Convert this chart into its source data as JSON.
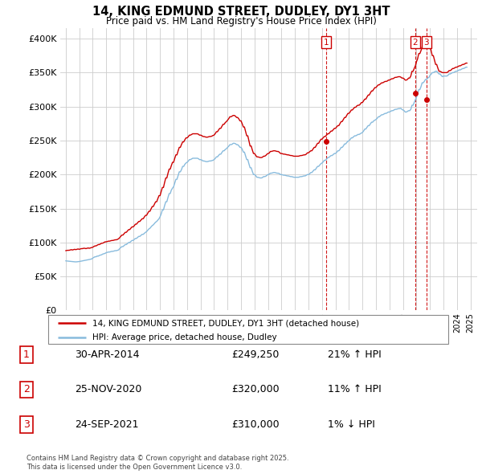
{
  "title": "14, KING EDMUND STREET, DUDLEY, DY1 3HT",
  "subtitle": "Price paid vs. HM Land Registry's House Price Index (HPI)",
  "ytick_values": [
    0,
    50000,
    100000,
    150000,
    200000,
    250000,
    300000,
    350000,
    400000
  ],
  "ylim": [
    0,
    415000
  ],
  "xlim": [
    1994.6,
    2025.5
  ],
  "red_color": "#cc0000",
  "blue_color": "#88bbdd",
  "bg_color": "#ffffff",
  "grid_color": "#cccccc",
  "transactions": [
    {
      "num": 1,
      "date": "30-APR-2014",
      "price": 249250,
      "year": 2014.33,
      "hpi_pct": "21%",
      "hpi_dir": "↑"
    },
    {
      "num": 2,
      "date": "25-NOV-2020",
      "price": 320000,
      "year": 2020.9,
      "hpi_pct": "11%",
      "hpi_dir": "↑"
    },
    {
      "num": 3,
      "date": "24-SEP-2021",
      "price": 310000,
      "year": 2021.73,
      "hpi_pct": "1%",
      "hpi_dir": "↓"
    }
  ],
  "legend_red_label": "14, KING EDMUND STREET, DUDLEY, DY1 3HT (detached house)",
  "legend_blue_label": "HPI: Average price, detached house, Dudley",
  "footer_line1": "Contains HM Land Registry data © Crown copyright and database right 2025.",
  "footer_line2": "This data is licensed under the Open Government Licence v3.0.",
  "hpi_years": [
    1995.0,
    1995.08,
    1995.17,
    1995.25,
    1995.33,
    1995.42,
    1995.5,
    1995.58,
    1995.67,
    1995.75,
    1995.83,
    1995.92,
    1996.0,
    1996.08,
    1996.17,
    1996.25,
    1996.33,
    1996.42,
    1996.5,
    1996.58,
    1996.67,
    1996.75,
    1996.83,
    1996.92,
    1997.0,
    1997.08,
    1997.17,
    1997.25,
    1997.33,
    1997.42,
    1997.5,
    1997.58,
    1997.67,
    1997.75,
    1997.83,
    1997.92,
    1998.0,
    1998.08,
    1998.17,
    1998.25,
    1998.33,
    1998.42,
    1998.5,
    1998.58,
    1998.67,
    1998.75,
    1998.83,
    1998.92,
    1999.0,
    1999.08,
    1999.17,
    1999.25,
    1999.33,
    1999.42,
    1999.5,
    1999.58,
    1999.67,
    1999.75,
    1999.83,
    1999.92,
    2000.0,
    2000.08,
    2000.17,
    2000.25,
    2000.33,
    2000.42,
    2000.5,
    2000.58,
    2000.67,
    2000.75,
    2000.83,
    2000.92,
    2001.0,
    2001.08,
    2001.17,
    2001.25,
    2001.33,
    2001.42,
    2001.5,
    2001.58,
    2001.67,
    2001.75,
    2001.83,
    2001.92,
    2002.0,
    2002.08,
    2002.17,
    2002.25,
    2002.33,
    2002.42,
    2002.5,
    2002.58,
    2002.67,
    2002.75,
    2002.83,
    2002.92,
    2003.0,
    2003.08,
    2003.17,
    2003.25,
    2003.33,
    2003.42,
    2003.5,
    2003.58,
    2003.67,
    2003.75,
    2003.83,
    2003.92,
    2004.0,
    2004.08,
    2004.17,
    2004.25,
    2004.33,
    2004.42,
    2004.5,
    2004.58,
    2004.67,
    2004.75,
    2004.83,
    2004.92,
    2005.0,
    2005.08,
    2005.17,
    2005.25,
    2005.33,
    2005.42,
    2005.5,
    2005.58,
    2005.67,
    2005.75,
    2005.83,
    2005.92,
    2006.0,
    2006.08,
    2006.17,
    2006.25,
    2006.33,
    2006.42,
    2006.5,
    2006.58,
    2006.67,
    2006.75,
    2006.83,
    2006.92,
    2007.0,
    2007.08,
    2007.17,
    2007.25,
    2007.33,
    2007.42,
    2007.5,
    2007.58,
    2007.67,
    2007.75,
    2007.83,
    2007.92,
    2008.0,
    2008.08,
    2008.17,
    2008.25,
    2008.33,
    2008.42,
    2008.5,
    2008.58,
    2008.67,
    2008.75,
    2008.83,
    2008.92,
    2009.0,
    2009.08,
    2009.17,
    2009.25,
    2009.33,
    2009.42,
    2009.5,
    2009.58,
    2009.67,
    2009.75,
    2009.83,
    2009.92,
    2010.0,
    2010.08,
    2010.17,
    2010.25,
    2010.33,
    2010.42,
    2010.5,
    2010.58,
    2010.67,
    2010.75,
    2010.83,
    2010.92,
    2011.0,
    2011.08,
    2011.17,
    2011.25,
    2011.33,
    2011.42,
    2011.5,
    2011.58,
    2011.67,
    2011.75,
    2011.83,
    2011.92,
    2012.0,
    2012.08,
    2012.17,
    2012.25,
    2012.33,
    2012.42,
    2012.5,
    2012.58,
    2012.67,
    2012.75,
    2012.83,
    2012.92,
    2013.0,
    2013.08,
    2013.17,
    2013.25,
    2013.33,
    2013.42,
    2013.5,
    2013.58,
    2013.67,
    2013.75,
    2013.83,
    2013.92,
    2014.0,
    2014.08,
    2014.17,
    2014.25,
    2014.33,
    2014.42,
    2014.5,
    2014.58,
    2014.67,
    2014.75,
    2014.83,
    2014.92,
    2015.0,
    2015.08,
    2015.17,
    2015.25,
    2015.33,
    2015.42,
    2015.5,
    2015.58,
    2015.67,
    2015.75,
    2015.83,
    2015.92,
    2016.0,
    2016.08,
    2016.17,
    2016.25,
    2016.33,
    2016.42,
    2016.5,
    2016.58,
    2016.67,
    2016.75,
    2016.83,
    2016.92,
    2017.0,
    2017.08,
    2017.17,
    2017.25,
    2017.33,
    2017.42,
    2017.5,
    2017.58,
    2017.67,
    2017.75,
    2017.83,
    2017.92,
    2018.0,
    2018.08,
    2018.17,
    2018.25,
    2018.33,
    2018.42,
    2018.5,
    2018.58,
    2018.67,
    2018.75,
    2018.83,
    2018.92,
    2019.0,
    2019.08,
    2019.17,
    2019.25,
    2019.33,
    2019.42,
    2019.5,
    2019.58,
    2019.67,
    2019.75,
    2019.83,
    2019.92,
    2020.0,
    2020.08,
    2020.17,
    2020.25,
    2020.33,
    2020.42,
    2020.5,
    2020.58,
    2020.67,
    2020.75,
    2020.83,
    2020.92,
    2021.0,
    2021.08,
    2021.17,
    2021.25,
    2021.33,
    2021.42,
    2021.5,
    2021.58,
    2021.67,
    2021.75,
    2021.83,
    2021.92,
    2022.0,
    2022.08,
    2022.17,
    2022.25,
    2022.33,
    2022.42,
    2022.5,
    2022.58,
    2022.67,
    2022.75,
    2022.83,
    2022.92,
    2023.0,
    2023.08,
    2023.17,
    2023.25,
    2023.33,
    2023.42,
    2023.5,
    2023.58,
    2023.67,
    2023.75,
    2023.83,
    2023.92,
    2024.0,
    2024.08,
    2024.17,
    2024.25,
    2024.33,
    2024.42,
    2024.5,
    2024.58,
    2024.67,
    2024.75
  ],
  "hpi_values": [
    73000,
    72800,
    72600,
    72500,
    72300,
    72100,
    72000,
    71800,
    71600,
    71500,
    71600,
    71800,
    72000,
    72300,
    72700,
    73000,
    73400,
    73700,
    74000,
    74400,
    74700,
    75000,
    75400,
    75700,
    77000,
    78000,
    79000,
    79000,
    80000,
    80000,
    81000,
    81500,
    82000,
    83000,
    83500,
    84000,
    85000,
    85500,
    86000,
    86000,
    86500,
    87000,
    87000,
    87500,
    88000,
    88000,
    88500,
    89000,
    91000,
    92500,
    94000,
    94000,
    95500,
    97000,
    97000,
    98500,
    100000,
    100000,
    101500,
    103000,
    103000,
    104500,
    106000,
    106000,
    107500,
    109000,
    109000,
    110500,
    112000,
    112000,
    113500,
    115000,
    116000,
    118000,
    120000,
    121000,
    123000,
    125000,
    126000,
    128000,
    130000,
    131000,
    133000,
    135000,
    138000,
    142000,
    148000,
    148000,
    154000,
    160000,
    160000,
    166000,
    172000,
    172000,
    177000,
    180000,
    182000,
    187000,
    193000,
    193000,
    198000,
    204000,
    204000,
    207000,
    212000,
    212000,
    215000,
    217000,
    218000,
    219500,
    222000,
    222000,
    223000,
    224000,
    224000,
    224000,
    224000,
    224000,
    223500,
    222000,
    222000,
    221500,
    220000,
    220000,
    219500,
    219000,
    219000,
    219500,
    220000,
    220000,
    220500,
    221000,
    222000,
    223500,
    226000,
    226000,
    228000,
    230000,
    230000,
    232500,
    235000,
    235000,
    237000,
    238000,
    240000,
    241500,
    244000,
    244000,
    244500,
    246000,
    246000,
    245500,
    244000,
    244000,
    242500,
    240000,
    240000,
    237500,
    233000,
    233000,
    228000,
    222000,
    222000,
    216000,
    210000,
    210000,
    205000,
    200000,
    200000,
    198500,
    196000,
    196000,
    195500,
    195000,
    195000,
    195500,
    197000,
    197000,
    197500,
    199000,
    200000,
    200500,
    202000,
    202000,
    202500,
    203000,
    203000,
    202500,
    202000,
    202000,
    201500,
    200000,
    200000,
    199500,
    199000,
    199000,
    198500,
    198000,
    198000,
    197500,
    197000,
    197000,
    196500,
    196000,
    196000,
    196000,
    196000,
    196000,
    196500,
    197000,
    197000,
    197500,
    198000,
    198000,
    199000,
    200000,
    200000,
    201000,
    203000,
    203000,
    205000,
    207000,
    207000,
    209500,
    212000,
    212000,
    214000,
    216000,
    217000,
    218500,
    221000,
    221000,
    222500,
    225000,
    225000,
    226500,
    228000,
    228000,
    229500,
    231000,
    231000,
    232500,
    235000,
    235000,
    237000,
    240000,
    240000,
    242000,
    245000,
    245000,
    247000,
    249000,
    250000,
    251500,
    254000,
    254000,
    255500,
    257000,
    257000,
    258000,
    259000,
    259000,
    260000,
    261000,
    262000,
    264000,
    267000,
    267000,
    269500,
    272000,
    272000,
    274500,
    277000,
    277000,
    279000,
    280000,
    281000,
    282500,
    285000,
    285000,
    286500,
    288000,
    288000,
    289000,
    290000,
    290000,
    291000,
    292000,
    292000,
    293000,
    294000,
    294000,
    295000,
    296000,
    296000,
    296500,
    297000,
    297000,
    297500,
    296000,
    295000,
    294000,
    292000,
    292000,
    293000,
    294000,
    294000,
    296000,
    302000,
    302000,
    306000,
    310000,
    314000,
    318000,
    325000,
    325000,
    329000,
    335000,
    335000,
    337000,
    340000,
    340000,
    342000,
    343000,
    346000,
    347500,
    350000,
    350000,
    351000,
    352000,
    352000,
    350000,
    348000,
    348000,
    346000,
    344000,
    345000,
    345000,
    345000,
    345000,
    346000,
    348000,
    348000,
    349000,
    350000,
    350000,
    351000,
    352000,
    352000,
    353000,
    354000,
    354000,
    355000,
    356000,
    356000,
    357000,
    358000,
    358000
  ],
  "price_years": [
    1995.0,
    1995.08,
    1995.17,
    1995.25,
    1995.33,
    1995.42,
    1995.5,
    1995.58,
    1995.67,
    1995.75,
    1995.83,
    1995.92,
    1996.0,
    1996.08,
    1996.17,
    1996.25,
    1996.33,
    1996.42,
    1996.5,
    1996.58,
    1996.67,
    1996.75,
    1996.83,
    1996.92,
    1997.0,
    1997.08,
    1997.17,
    1997.25,
    1997.33,
    1997.42,
    1997.5,
    1997.58,
    1997.67,
    1997.75,
    1997.83,
    1997.92,
    1998.0,
    1998.08,
    1998.17,
    1998.25,
    1998.33,
    1998.42,
    1998.5,
    1998.58,
    1998.67,
    1998.75,
    1998.83,
    1998.92,
    1999.0,
    1999.08,
    1999.17,
    1999.25,
    1999.33,
    1999.42,
    1999.5,
    1999.58,
    1999.67,
    1999.75,
    1999.83,
    1999.92,
    2000.0,
    2000.08,
    2000.17,
    2000.25,
    2000.33,
    2000.42,
    2000.5,
    2000.58,
    2000.67,
    2000.75,
    2000.83,
    2000.92,
    2001.0,
    2001.08,
    2001.17,
    2001.25,
    2001.33,
    2001.42,
    2001.5,
    2001.58,
    2001.67,
    2001.75,
    2001.83,
    2001.92,
    2002.0,
    2002.08,
    2002.17,
    2002.25,
    2002.33,
    2002.42,
    2002.5,
    2002.58,
    2002.67,
    2002.75,
    2002.83,
    2002.92,
    2003.0,
    2003.08,
    2003.17,
    2003.25,
    2003.33,
    2003.42,
    2003.5,
    2003.58,
    2003.67,
    2003.75,
    2003.83,
    2003.92,
    2004.0,
    2004.08,
    2004.17,
    2004.25,
    2004.33,
    2004.42,
    2004.5,
    2004.58,
    2004.67,
    2004.75,
    2004.83,
    2004.92,
    2005.0,
    2005.08,
    2005.17,
    2005.25,
    2005.33,
    2005.42,
    2005.5,
    2005.58,
    2005.67,
    2005.75,
    2005.83,
    2005.92,
    2006.0,
    2006.08,
    2006.17,
    2006.25,
    2006.33,
    2006.42,
    2006.5,
    2006.58,
    2006.67,
    2006.75,
    2006.83,
    2006.92,
    2007.0,
    2007.08,
    2007.17,
    2007.25,
    2007.33,
    2007.42,
    2007.5,
    2007.58,
    2007.67,
    2007.75,
    2007.83,
    2007.92,
    2008.0,
    2008.08,
    2008.17,
    2008.25,
    2008.33,
    2008.42,
    2008.5,
    2008.58,
    2008.67,
    2008.75,
    2008.83,
    2008.92,
    2009.0,
    2009.08,
    2009.17,
    2009.25,
    2009.33,
    2009.42,
    2009.5,
    2009.58,
    2009.67,
    2009.75,
    2009.83,
    2009.92,
    2010.0,
    2010.08,
    2010.17,
    2010.25,
    2010.33,
    2010.42,
    2010.5,
    2010.58,
    2010.67,
    2010.75,
    2010.83,
    2010.92,
    2011.0,
    2011.08,
    2011.17,
    2011.25,
    2011.33,
    2011.42,
    2011.5,
    2011.58,
    2011.67,
    2011.75,
    2011.83,
    2011.92,
    2012.0,
    2012.08,
    2012.17,
    2012.25,
    2012.33,
    2012.42,
    2012.5,
    2012.58,
    2012.67,
    2012.75,
    2012.83,
    2012.92,
    2013.0,
    2013.08,
    2013.17,
    2013.25,
    2013.33,
    2013.42,
    2013.5,
    2013.58,
    2013.67,
    2013.75,
    2013.83,
    2013.92,
    2014.0,
    2014.08,
    2014.17,
    2014.25,
    2014.33,
    2014.42,
    2014.5,
    2014.58,
    2014.67,
    2014.75,
    2014.83,
    2014.92,
    2015.0,
    2015.08,
    2015.17,
    2015.25,
    2015.33,
    2015.42,
    2015.5,
    2015.58,
    2015.67,
    2015.75,
    2015.83,
    2015.92,
    2016.0,
    2016.08,
    2016.17,
    2016.25,
    2016.33,
    2016.42,
    2016.5,
    2016.58,
    2016.67,
    2016.75,
    2016.83,
    2016.92,
    2017.0,
    2017.08,
    2017.17,
    2017.25,
    2017.33,
    2017.42,
    2017.5,
    2017.58,
    2017.67,
    2017.75,
    2017.83,
    2017.92,
    2018.0,
    2018.08,
    2018.17,
    2018.25,
    2018.33,
    2018.42,
    2018.5,
    2018.58,
    2018.67,
    2018.75,
    2018.83,
    2018.92,
    2019.0,
    2019.08,
    2019.17,
    2019.25,
    2019.33,
    2019.42,
    2019.5,
    2019.58,
    2019.67,
    2019.75,
    2019.83,
    2019.92,
    2020.0,
    2020.08,
    2020.17,
    2020.25,
    2020.33,
    2020.42,
    2020.5,
    2020.58,
    2020.67,
    2020.75,
    2020.83,
    2020.92,
    2021.0,
    2021.08,
    2021.17,
    2021.25,
    2021.33,
    2021.42,
    2021.5,
    2021.58,
    2021.67,
    2021.75,
    2021.83,
    2021.92,
    2022.0,
    2022.08,
    2022.17,
    2022.25,
    2022.33,
    2022.42,
    2022.5,
    2022.58,
    2022.67,
    2022.75,
    2022.83,
    2022.92,
    2023.0,
    2023.08,
    2023.17,
    2023.25,
    2023.33,
    2023.42,
    2023.5,
    2023.58,
    2023.67,
    2023.75,
    2023.83,
    2023.92,
    2024.0,
    2024.08,
    2024.17,
    2024.25,
    2024.33,
    2024.42,
    2024.5,
    2024.58,
    2024.67,
    2024.75
  ],
  "price_values": [
    88000,
    88300,
    88600,
    88500,
    89000,
    89500,
    89000,
    89500,
    90000,
    89500,
    90000,
    90500,
    90000,
    90500,
    91000,
    91000,
    91500,
    91500,
    91000,
    91500,
    92000,
    91500,
    92000,
    92500,
    93000,
    94000,
    95000,
    95000,
    96000,
    97000,
    97000,
    98000,
    99000,
    99000,
    100000,
    101000,
    101000,
    101500,
    102000,
    102000,
    102500,
    103000,
    103000,
    103500,
    104000,
    104000,
    104500,
    105500,
    107000,
    109000,
    111000,
    111000,
    113000,
    115000,
    115000,
    117000,
    119000,
    119000,
    121000,
    123000,
    123000,
    124500,
    127000,
    127000,
    129000,
    131000,
    131000,
    133000,
    135000,
    135000,
    137500,
    140000,
    140000,
    143000,
    146000,
    146000,
    149500,
    153000,
    153000,
    156500,
    160000,
    160000,
    164500,
    169000,
    169000,
    175000,
    181000,
    181000,
    188000,
    195000,
    195000,
    201500,
    208000,
    208000,
    213000,
    218000,
    218000,
    223500,
    229000,
    229000,
    234500,
    240000,
    240000,
    244000,
    248000,
    248000,
    251000,
    254000,
    254000,
    255500,
    258000,
    258000,
    259000,
    260000,
    260000,
    260000,
    260000,
    260000,
    259500,
    258000,
    258000,
    257500,
    256000,
    256000,
    255500,
    255000,
    255000,
    255500,
    256000,
    256000,
    256500,
    257500,
    258000,
    260000,
    263000,
    263000,
    265500,
    268000,
    268000,
    271000,
    274000,
    274000,
    276500,
    278000,
    280000,
    282000,
    285000,
    285000,
    286000,
    287000,
    287000,
    286000,
    284000,
    284000,
    282000,
    279000,
    279000,
    275000,
    270000,
    270000,
    264000,
    257000,
    257000,
    250000,
    242000,
    242000,
    236500,
    231000,
    231000,
    228500,
    226000,
    226000,
    225500,
    225000,
    225000,
    225500,
    227000,
    227000,
    228000,
    230000,
    231000,
    231500,
    234000,
    234000,
    234500,
    235000,
    235000,
    234500,
    234000,
    234000,
    233000,
    231000,
    231000,
    230500,
    230000,
    230000,
    229500,
    229000,
    229000,
    228500,
    228000,
    228000,
    227500,
    227000,
    227000,
    227000,
    227000,
    227000,
    227500,
    228000,
    228000,
    228500,
    229000,
    229000,
    230000,
    232000,
    232000,
    233500,
    235000,
    235000,
    237500,
    240000,
    240000,
    243000,
    246000,
    246000,
    249000,
    252000,
    252000,
    254000,
    256000,
    256000,
    258000,
    260000,
    260000,
    262000,
    264000,
    264000,
    266000,
    268000,
    268000,
    270000,
    272000,
    272000,
    275000,
    278000,
    278000,
    281000,
    284000,
    284000,
    287000,
    290000,
    290000,
    292000,
    295000,
    295000,
    297000,
    299000,
    299000,
    301000,
    302000,
    302000,
    303500,
    306000,
    306000,
    308500,
    311000,
    311000,
    314000,
    317000,
    317000,
    320000,
    323000,
    323000,
    325500,
    328000,
    328000,
    330000,
    332000,
    332000,
    333500,
    335000,
    335000,
    336000,
    337000,
    337000,
    337500,
    339000,
    339000,
    340000,
    341000,
    341000,
    342000,
    343000,
    343000,
    343500,
    344000,
    344000,
    343500,
    342000,
    342000,
    341000,
    339000,
    339000,
    340000,
    342000,
    342000,
    345000,
    352000,
    352000,
    356000,
    360000,
    366000,
    370000,
    378000,
    378000,
    382000,
    388000,
    388000,
    390000,
    393000,
    393000,
    391000,
    388000,
    388000,
    383000,
    375000,
    375000,
    369000,
    362000,
    362000,
    357000,
    352000,
    352000,
    351000,
    350000,
    350000,
    350000,
    350000,
    350000,
    351000,
    353000,
    353000,
    354000,
    356000,
    356000,
    357000,
    358000,
    358000,
    359000,
    360000,
    360000,
    361000,
    362000,
    362000,
    363000,
    364000,
    364000
  ]
}
